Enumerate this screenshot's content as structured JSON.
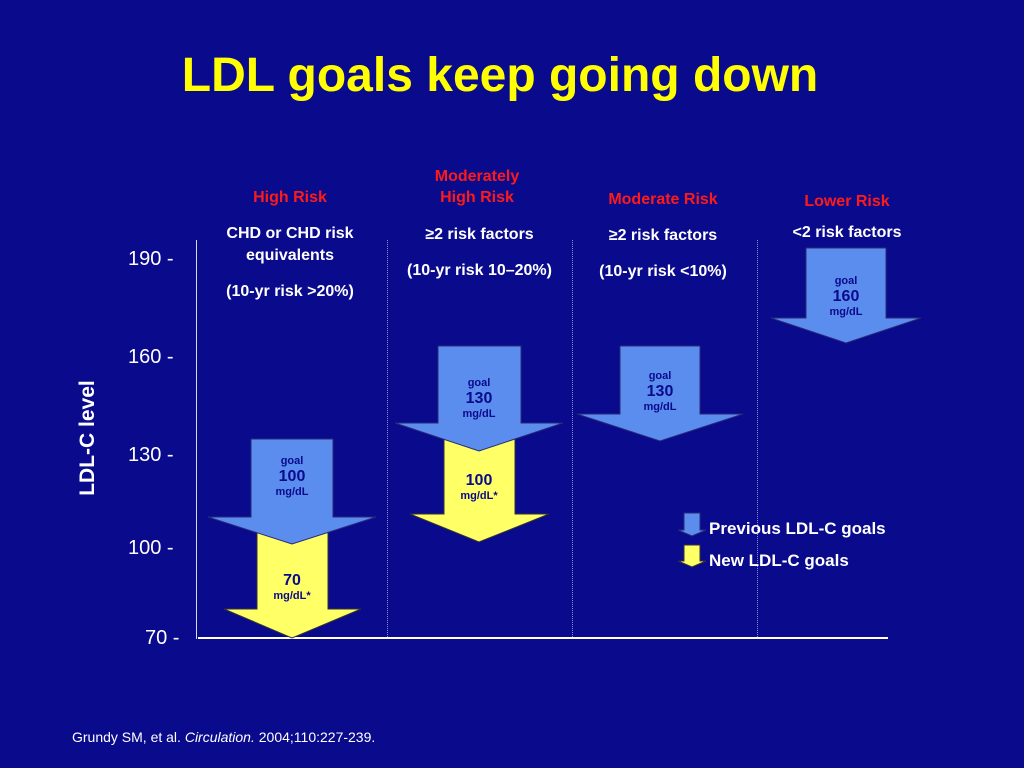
{
  "title": "LDL goals keep going down",
  "y_axis": {
    "label": "LDL-C level",
    "ticks": [
      "190 -",
      "160 -",
      "130 -",
      "100 -",
      "70 -"
    ]
  },
  "categories": [
    {
      "risk_label_line1": "High Risk",
      "risk_label_line2": "",
      "criteria_line1": "CHD or CHD risk",
      "criteria_line2": "equivalents",
      "criteria_line3": "(10-yr risk >20%)",
      "previous_goal": {
        "goal_word": "goal",
        "value": "100",
        "unit": "mg/dL"
      },
      "new_goal": {
        "value": "70",
        "unit": "mg/dL*"
      }
    },
    {
      "risk_label_line1": "Moderately",
      "risk_label_line2": "High Risk",
      "criteria_line1": "≥2 risk factors",
      "criteria_line2": "",
      "criteria_line3": "(10-yr risk 10–20%)",
      "previous_goal": {
        "goal_word": "goal",
        "value": "130",
        "unit": "mg/dL"
      },
      "new_goal": {
        "value": "100",
        "unit": "mg/dL*"
      }
    },
    {
      "risk_label_line1": "Moderate Risk",
      "risk_label_line2": "",
      "criteria_line1": "≥2 risk factors",
      "criteria_line2": "",
      "criteria_line3": "(10-yr risk <10%)",
      "previous_goal": {
        "goal_word": "goal",
        "value": "130",
        "unit": "mg/dL"
      }
    },
    {
      "risk_label_line1": "Lower Risk",
      "risk_label_line2": "",
      "criteria_line1": "<2 risk factors",
      "criteria_line2": "",
      "criteria_line3": "",
      "previous_goal": {
        "goal_word": "goal",
        "value": "160",
        "unit": "mg/dL"
      }
    }
  ],
  "legend": {
    "previous": "Previous LDL-C goals",
    "new": "New LDL-C goals"
  },
  "citation": {
    "authors": "Grundy SM, et al.",
    "journal": "Circulation.",
    "details": "2004;110:227-239."
  },
  "colors": {
    "background": "#0a0a8c",
    "title": "#ffff00",
    "risk_label": "#ff1a1a",
    "previous_arrow": "#5b8def",
    "new_arrow": "#ffff66"
  }
}
